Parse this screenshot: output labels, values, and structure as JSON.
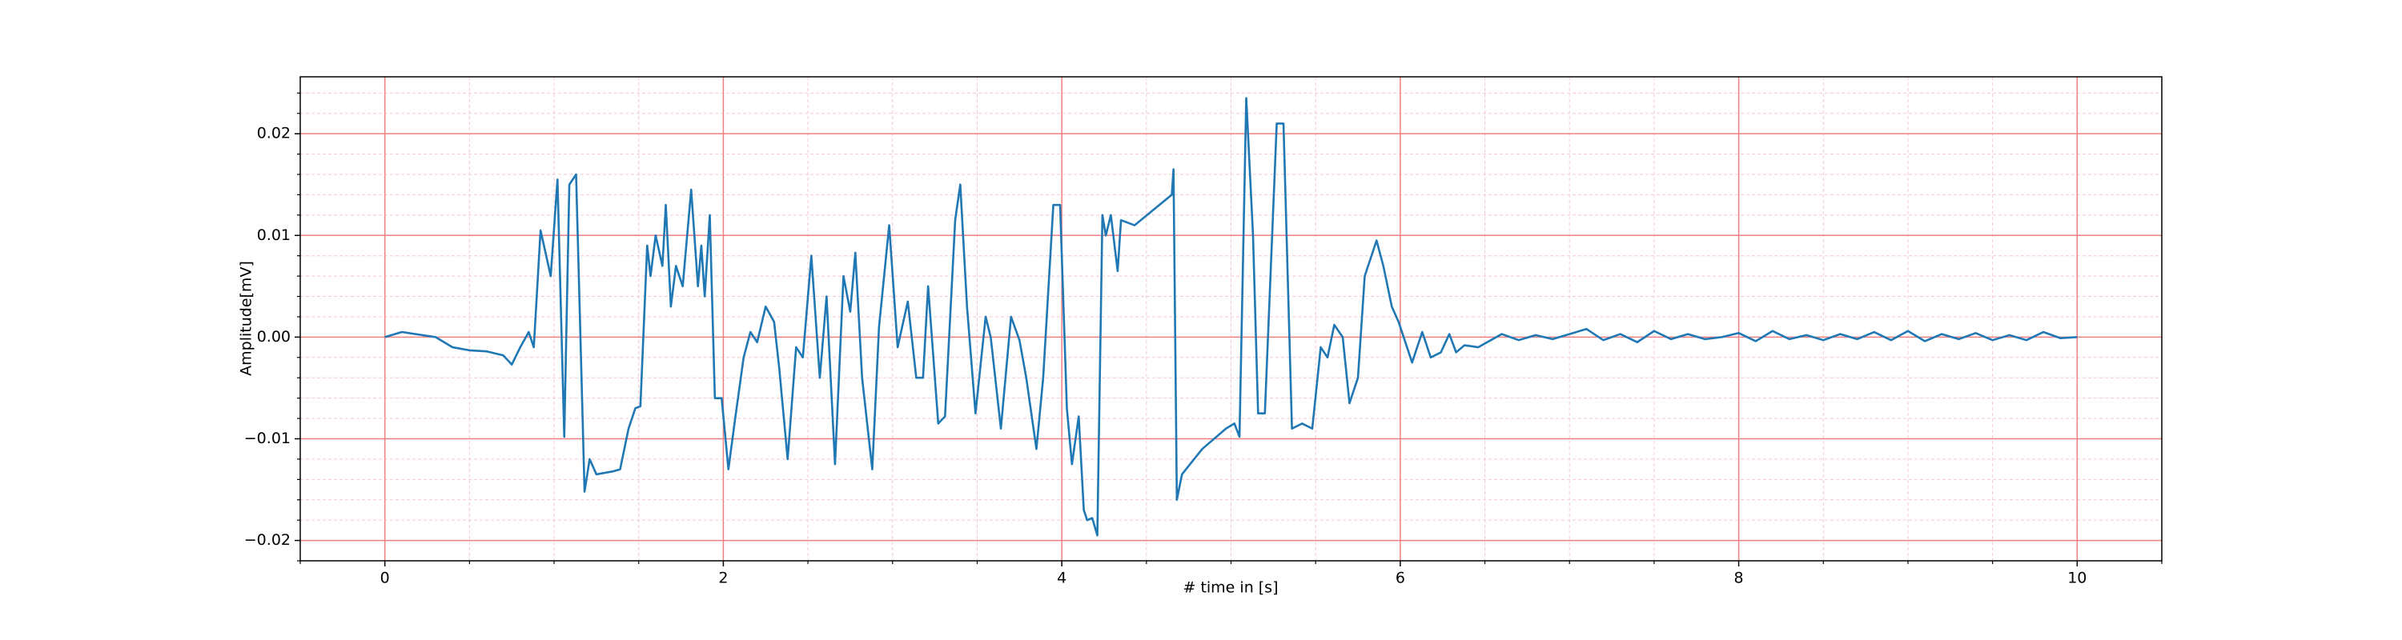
{
  "chart_data": {
    "type": "line",
    "xlabel": "# time in [s]",
    "ylabel": "Amplitude[mV]",
    "xlim": [
      -0.5,
      10.5
    ],
    "ylim": [
      -0.022,
      0.0256
    ],
    "xticks": [
      0,
      2,
      4,
      6,
      8,
      10
    ],
    "yticks": [
      {
        "value": -0.02,
        "label": "−0.02"
      },
      {
        "value": -0.01,
        "label": "−0.01"
      },
      {
        "value": 0,
        "label": "0.00"
      },
      0.01,
      0.02
    ],
    "xminorticks": [
      -0.5,
      0.5,
      1,
      1.5,
      2.5,
      3,
      3.5,
      4.5,
      5,
      5.5,
      6.5,
      7,
      7.5,
      8.5,
      9,
      9.5,
      10.5
    ],
    "yminorticks": [
      -0.022,
      -0.018,
      -0.016,
      -0.014,
      -0.012,
      -0.008,
      -0.006,
      -0.004,
      -0.002,
      0.002,
      0.004,
      0.006,
      0.008,
      0.012,
      0.014,
      0.016,
      0.018,
      0.022,
      0.024
    ],
    "grid": true,
    "grid_color": "#f08080",
    "minor_grid_color": "#f6c8d0",
    "series": [
      {
        "name": "Amplitude",
        "color": "#1f77b4",
        "x": [
          0,
          0.1,
          0.3,
          0.4,
          0.5,
          0.6,
          0.7,
          0.75,
          0.8,
          0.85,
          0.88,
          0.92,
          0.98,
          1.02,
          1.06,
          1.09,
          1.13,
          1.18,
          1.21,
          1.25,
          1.35,
          1.39,
          1.44,
          1.48,
          1.51,
          1.55,
          1.57,
          1.6,
          1.64,
          1.66,
          1.69,
          1.72,
          1.76,
          1.81,
          1.85,
          1.87,
          1.89,
          1.92,
          1.95,
          1.99,
          2.03,
          2.07,
          2.12,
          2.16,
          2.2,
          2.25,
          2.3,
          2.33,
          2.38,
          2.43,
          2.47,
          2.52,
          2.57,
          2.61,
          2.66,
          2.71,
          2.75,
          2.78,
          2.82,
          2.88,
          2.92,
          2.98,
          3.03,
          3.09,
          3.14,
          3.18,
          3.21,
          3.27,
          3.31,
          3.37,
          3.4,
          3.44,
          3.49,
          3.55,
          3.58,
          3.64,
          3.7,
          3.75,
          3.79,
          3.85,
          3.89,
          3.95,
          3.99,
          4.03,
          4.06,
          4.1,
          4.13,
          4.15,
          4.18,
          4.21,
          4.24,
          4.26,
          4.29,
          4.33,
          4.35,
          4.43,
          4.65,
          4.66,
          4.68,
          4.71,
          4.83,
          4.97,
          5.02,
          5.05,
          5.09,
          5.13,
          5.16,
          5.2,
          5.27,
          5.31,
          5.36,
          5.42,
          5.48,
          5.53,
          5.57,
          5.61,
          5.66,
          5.7,
          5.75,
          5.79,
          5.86,
          5.9,
          5.95,
          5.99,
          6.04,
          6.07,
          6.13,
          6.18,
          6.24,
          6.29,
          6.33,
          6.38,
          6.46,
          6.6,
          6.7,
          6.8,
          6.9,
          7.0,
          7.1,
          7.2,
          7.3,
          7.4,
          7.5,
          7.6,
          7.7,
          7.8,
          7.9,
          8.0,
          8.1,
          8.2,
          8.3,
          8.4,
          8.5,
          8.6,
          8.7,
          8.8,
          8.9,
          9.0,
          9.1,
          9.2,
          9.3,
          9.4,
          9.5,
          9.6,
          9.7,
          9.8,
          9.9,
          10.0
        ],
        "values": [
          0,
          0.0005,
          0,
          -0.001,
          -0.0013,
          -0.0014,
          -0.0018,
          -0.0027,
          -0.001,
          0.0005,
          -0.001,
          0.0105,
          0.006,
          0.0155,
          -0.0098,
          0.015,
          0.016,
          -0.0152,
          -0.012,
          -0.0135,
          -0.0132,
          -0.013,
          -0.009,
          -0.007,
          -0.0068,
          0.009,
          0.006,
          0.01,
          0.007,
          0.013,
          0.003,
          0.007,
          0.005,
          0.0145,
          0.005,
          0.009,
          0.004,
          0.012,
          -0.006,
          -0.006,
          -0.013,
          -0.008,
          -0.002,
          0.0005,
          -0.0005,
          0.003,
          0.0015,
          -0.003,
          -0.012,
          -0.001,
          -0.002,
          0.008,
          -0.004,
          0.004,
          -0.0125,
          0.006,
          0.0025,
          0.0083,
          -0.004,
          -0.013,
          0.001,
          0.011,
          -0.001,
          0.0035,
          -0.004,
          -0.004,
          0.005,
          -0.0085,
          -0.0078,
          0.0115,
          0.015,
          0.003,
          -0.0075,
          0.002,
          0,
          -0.009,
          0.002,
          -0.0003,
          -0.004,
          -0.011,
          -0.004,
          0.013,
          0.013,
          -0.007,
          -0.0125,
          -0.0078,
          -0.017,
          -0.018,
          -0.0178,
          -0.0195,
          0.012,
          0.01,
          0.012,
          0.0065,
          0.0115,
          0.011,
          0.014,
          0.0165,
          -0.016,
          -0.0135,
          -0.011,
          -0.009,
          -0.0085,
          -0.0098,
          0.0235,
          0.01,
          -0.0075,
          -0.0075,
          0.021,
          0.021,
          -0.009,
          -0.0085,
          -0.009,
          -0.001,
          -0.002,
          0.0012,
          0,
          -0.0065,
          -0.004,
          0.006,
          0.0095,
          0.007,
          0.003,
          0.0015,
          -0.001,
          -0.0025,
          0.0005,
          -0.002,
          -0.0015,
          0.0003,
          -0.0015,
          -0.0008,
          -0.001,
          0.0003,
          -0.0003,
          0.0002,
          -0.0002,
          0.0003,
          0.0008,
          -0.0003,
          0.0003,
          -0.0005,
          0.0006,
          -0.0002,
          0.0003,
          -0.0002,
          0,
          0.0004,
          -0.0004,
          0.0006,
          -0.0002,
          0.0002,
          -0.0003,
          0.0003,
          -0.0002,
          0.0005,
          -0.0003,
          0.0006,
          -0.0004,
          0.0003,
          -0.0002,
          0.0004,
          -0.0003,
          0.0002,
          -0.0003,
          0.0005,
          -0.0001,
          0
        ]
      }
    ]
  }
}
